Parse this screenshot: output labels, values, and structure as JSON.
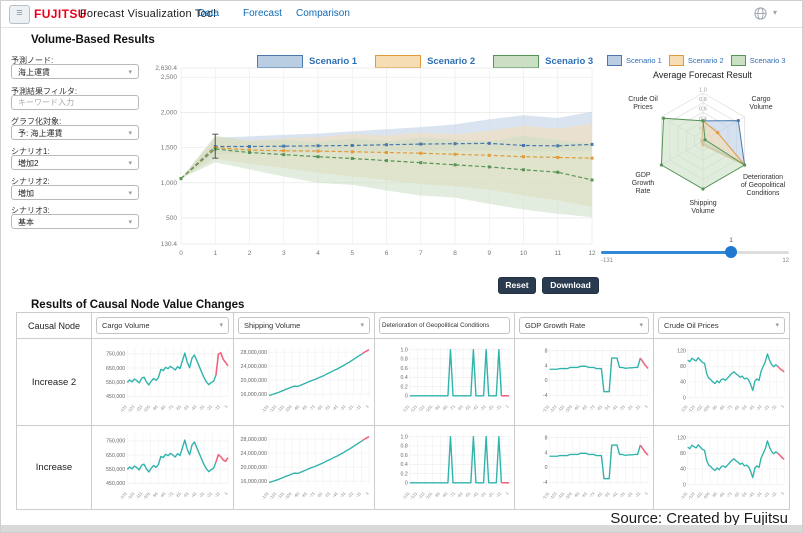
{
  "navbar": {
    "logo": "FUJITSU",
    "title": "Forecast Visualization Tool",
    "links": [
      {
        "label": "Data"
      },
      {
        "label": "Forecast"
      },
      {
        "label": "Comparison"
      }
    ]
  },
  "volume_section": {
    "title": "Volume-Based Results"
  },
  "sidebar": {
    "fields": [
      {
        "label": "予測ノード:",
        "type": "select",
        "value": "海上運賃"
      },
      {
        "label": "予測結果フィルタ:",
        "type": "input",
        "placeholder": "キーワード入力"
      },
      {
        "label": "グラフ化対象:",
        "type": "select",
        "value": "予: 海上運賃"
      },
      {
        "label": "シナリオ1:",
        "type": "select",
        "value": "増加2"
      },
      {
        "label": "シナリオ2:",
        "type": "select",
        "value": "増加"
      },
      {
        "label": "シナリオ3:",
        "type": "select",
        "value": "基本"
      }
    ]
  },
  "radar_panel": {
    "title": "Average Forecast Result",
    "slider": {
      "value": "1",
      "min": "-131",
      "max": "12"
    }
  },
  "buttons": {
    "reset": "Reset",
    "download": "Download"
  },
  "causal_section": {
    "title": "Results of Causal Node Value Changes",
    "header": "Causal Node"
  },
  "source": "Source: Created by Fujitsu",
  "chart_data": {
    "forecast": {
      "type": "line",
      "title": "Volume-Based Results",
      "x": [
        0,
        1,
        2,
        3,
        4,
        5,
        6,
        7,
        8,
        9,
        10,
        11,
        12
      ],
      "ylim": [
        130.4,
        2630.4
      ],
      "yticks": [
        [
          "2,630.4",
          2630.4
        ],
        [
          "2,500",
          2500
        ],
        [
          "2,000",
          2000
        ],
        [
          "1,500",
          1500
        ],
        [
          "1,000",
          1000
        ],
        [
          "500",
          500
        ],
        [
          "130.4",
          130.4
        ]
      ],
      "errorbar": {
        "x": 1,
        "lo": 1350,
        "hi": 1690
      },
      "series": [
        {
          "name": "Scenario 1",
          "color": "#4a78aa",
          "fill": "#b9cde3",
          "line": [
            1060,
            1515,
            1515,
            1520,
            1525,
            1530,
            1540,
            1550,
            1555,
            1560,
            1530,
            1525,
            1545
          ],
          "upper": [
            1060,
            1640,
            1660,
            1680,
            1700,
            1730,
            1760,
            1790,
            1830,
            1900,
            1960,
            1920,
            2010
          ],
          "lower": [
            1060,
            1400,
            1420,
            1430,
            1430,
            1440,
            1450,
            1450,
            1455,
            1460,
            1450,
            1445,
            1455
          ]
        },
        {
          "name": "Scenario 2",
          "color": "#e09a3c",
          "fill": "#f7ddb4",
          "line": [
            1060,
            1500,
            1465,
            1455,
            1450,
            1440,
            1430,
            1420,
            1405,
            1390,
            1370,
            1360,
            1350
          ],
          "upper": [
            1060,
            1650,
            1600,
            1630,
            1650,
            1690,
            1670,
            1710,
            1690,
            1740,
            1810,
            1770,
            1840
          ],
          "lower": [
            1060,
            1340,
            1270,
            1210,
            1140,
            1090,
            1040,
            980,
            950,
            900,
            820,
            750,
            660
          ]
        },
        {
          "name": "Scenario 3",
          "color": "#579457",
          "fill": "#cbdfc4",
          "line": [
            1060,
            1480,
            1430,
            1400,
            1370,
            1345,
            1315,
            1285,
            1255,
            1225,
            1185,
            1150,
            1040
          ],
          "upper": [
            1060,
            1670,
            1590,
            1610,
            1580,
            1630,
            1590,
            1640,
            1610,
            1590,
            1670,
            1610,
            1550
          ],
          "lower": [
            1060,
            1290,
            1190,
            1090,
            1000,
            970,
            890,
            820,
            790,
            700,
            620,
            560,
            510
          ]
        }
      ]
    },
    "radar": {
      "type": "radar",
      "title": "Average Forecast Result",
      "ticks": [
        [
          "1.0",
          1.0
        ],
        [
          "0.8",
          0.8
        ],
        [
          "0.6",
          0.6
        ],
        [
          "0.4",
          0.4
        ],
        [
          "0.2",
          0.2
        ]
      ],
      "axes": [
        {
          "label": "",
          "lines": []
        },
        {
          "label": "Cargo Volume",
          "lines": [
            "Cargo",
            "Volume"
          ]
        },
        {
          "label": "Deterioration of Geopolitical Conditions",
          "lines": [
            "Deterioration",
            "of Geopolitical",
            "Conditions"
          ]
        },
        {
          "label": "Shipping Volume",
          "lines": [
            "Shipping",
            "Volume"
          ]
        },
        {
          "label": "GDP Growth Rate",
          "lines": [
            "GDP",
            "Growth",
            "Rate"
          ]
        },
        {
          "label": "Crude Oil Prices",
          "lines": [
            "Crude Oil",
            "Prices"
          ]
        }
      ],
      "series": [
        {
          "name": "Scenario 1",
          "values": [
            0.42,
            0.85,
            1.0,
            0.04,
            0.02,
            0.02
          ]
        },
        {
          "name": "Scenario 2",
          "values": [
            0.42,
            0.35,
            1.0,
            0.08,
            0.02,
            0.02
          ]
        },
        {
          "name": "Scenario 3",
          "values": [
            0.42,
            0.05,
            1.0,
            1.0,
            1.0,
            0.95
          ]
        }
      ]
    },
    "causal": {
      "type": "line",
      "xlabels": [
        "-131",
        "-121",
        "-111",
        "-101",
        "-91",
        "-81",
        "-71",
        "-61",
        "-51",
        "-41",
        "-31",
        "-21",
        "-11",
        "1"
      ],
      "charts": [
        {
          "name": "Cargo Volume",
          "ymin": 440,
          "ymax": 800,
          "yticks": [
            [
              "750,000",
              750
            ],
            [
              "650,000",
              650
            ],
            [
              "550,000",
              550
            ],
            [
              "450,000",
              450
            ]
          ],
          "main": [
            548,
            565,
            552,
            572,
            560,
            545,
            577,
            585,
            552,
            530,
            556,
            576,
            562,
            582,
            640,
            632,
            655,
            645,
            662,
            650,
            636,
            660,
            646,
            700,
            756,
            692,
            652,
            720,
            742,
            702,
            662,
            622,
            582,
            552,
            532,
            546,
            556,
            600
          ]
        },
        {
          "name": "Shipping Volume",
          "ymin": 15,
          "ymax": 29.5,
          "yticks": [
            [
              "28,000,000",
              28
            ],
            [
              "24,000,000",
              24
            ],
            [
              "20,000,000",
              20
            ],
            [
              "16,000,000",
              16
            ]
          ],
          "main": [
            15.6,
            15.9,
            16.2,
            16.5,
            16.9,
            17.3,
            17.6,
            18.0,
            18.3,
            18.2,
            18.6,
            19.0,
            19.4,
            19.8,
            20.1,
            20.5,
            20.9,
            21.3,
            21.8,
            22.2,
            22.7,
            23.1,
            23.6,
            24.1,
            24.7,
            25.2,
            25.8,
            26.4,
            27.0,
            27.6
          ]
        },
        {
          "name": "Deterioration of Geopolitical Conditions",
          "ymin": -0.04,
          "ymax": 1.06,
          "yticks": [
            [
              "1.0",
              1
            ],
            [
              "0.8",
              0.8
            ],
            [
              "0.6",
              0.6
            ],
            [
              "0.4",
              0.4
            ],
            [
              "0.2",
              0.2
            ],
            [
              "0",
              0
            ]
          ],
          "main": [
            0,
            0,
            0,
            0,
            0,
            0,
            0,
            0,
            0,
            0,
            0,
            0,
            0,
            0,
            0,
            0,
            1,
            0,
            0,
            0,
            0,
            0,
            0,
            0,
            0,
            1,
            0,
            0,
            0,
            0,
            1,
            0,
            0,
            0,
            0,
            1,
            0
          ]
        },
        {
          "name": "GDP Growth Rate",
          "ymin": -4.6,
          "ymax": 9,
          "yticks": [
            [
              "8",
              8
            ],
            [
              "4",
              4
            ],
            [
              "0",
              0
            ],
            [
              "-4",
              -4
            ]
          ],
          "main": [
            3,
            3,
            3,
            3,
            3.2,
            3.2,
            3.2,
            3.2,
            3.5,
            3.5,
            3.5,
            3.5,
            3.8,
            3.8,
            3.8,
            3.5,
            3.5,
            3.5,
            3.2,
            3.2,
            3.2,
            -3,
            -3,
            -3,
            6,
            6,
            6,
            3.5,
            3.5,
            3.3,
            3.3,
            3.4,
            3.4,
            3.5,
            3.5,
            6
          ]
        },
        {
          "name": "Crude Oil Prices",
          "ymin": 0,
          "ymax": 130,
          "yticks": [
            [
              "120",
              120
            ],
            [
              "80",
              80
            ],
            [
              "40",
              40
            ],
            [
              "0",
              0
            ]
          ],
          "main": [
            96,
            92,
            101,
            97,
            94,
            102,
            96,
            90,
            88,
            62,
            50,
            46,
            40,
            36,
            43,
            38,
            46,
            48,
            44,
            50,
            56,
            62,
            66,
            61,
            57,
            52,
            55,
            48,
            50,
            46,
            34,
            18,
            42,
            48,
            44,
            68,
            80,
            92,
            112,
            96,
            85,
            79,
            84,
            80
          ]
        }
      ],
      "rows": [
        {
          "label": "Increase 2",
          "ends": [
            [
              600,
              748,
              758,
              712,
              690,
              665
            ],
            [
              27.6,
              28.2,
              28.7
            ],
            [
              0,
              0,
              0,
              0
            ],
            [
              6,
              5,
              4,
              3.2
            ],
            [
              80,
              74,
              70,
              66
            ]
          ]
        },
        {
          "label": "Increase",
          "ends": [
            [
              600,
              652,
              638,
              615,
              605,
              632
            ],
            [
              27.6,
              28.2,
              28.7
            ],
            [
              0,
              0,
              0,
              0
            ],
            [
              6,
              5,
              4,
              3.3
            ],
            [
              80,
              75,
              69,
              65
            ]
          ]
        }
      ]
    }
  }
}
